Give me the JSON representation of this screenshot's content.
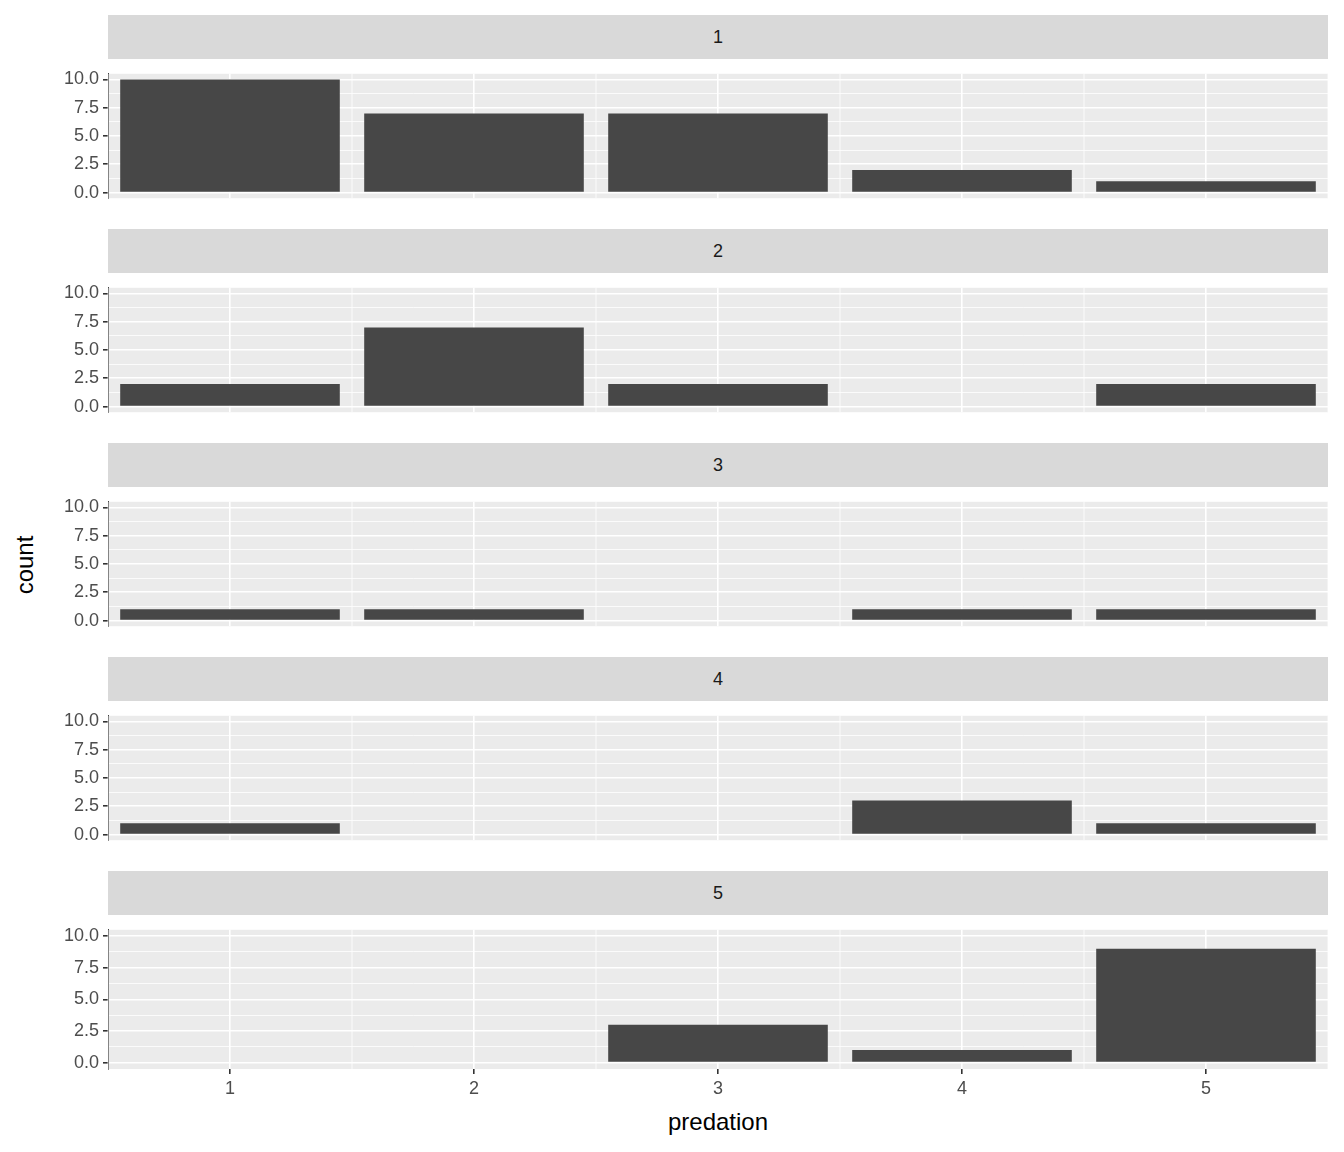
{
  "chart_data": {
    "type": "bar",
    "x_label": "predation",
    "y_label": "count",
    "categories": [
      "1",
      "2",
      "3",
      "4",
      "5"
    ],
    "color": "#474747",
    "grid": true,
    "ylim": [
      -0.5,
      10.5
    ],
    "yticks": [
      {
        "value": 0,
        "label": "0.0"
      },
      2.5,
      {
        "value": 5,
        "label": "5.0"
      },
      7.5,
      {
        "value": 10,
        "label": "10.0"
      }
    ],
    "facets": [
      {
        "title": "1",
        "values": [
          10,
          7,
          7,
          2,
          1
        ]
      },
      {
        "title": "2",
        "values": [
          2,
          7,
          2,
          0,
          2
        ]
      },
      {
        "title": "3",
        "values": [
          1,
          1,
          0,
          1,
          1
        ]
      },
      {
        "title": "4",
        "values": [
          1,
          0,
          0,
          3,
          1
        ]
      },
      {
        "title": "5",
        "values": [
          0,
          0,
          3,
          1,
          9
        ]
      }
    ]
  }
}
